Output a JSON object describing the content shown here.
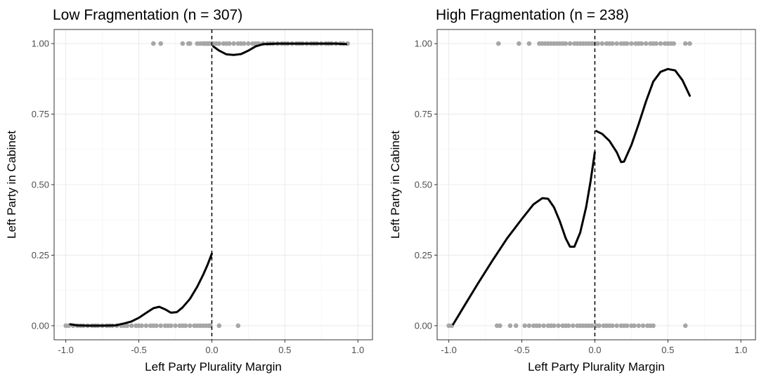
{
  "chart_data": [
    {
      "type": "scatter",
      "title": "Low Fragmentation (n = 307)",
      "xlabel": "Left Party Plurality Margin",
      "ylabel": "Left Party in Cabinet",
      "xlim": [
        -1.08,
        1.1
      ],
      "ylim": [
        -0.05,
        1.05
      ],
      "xticks": [
        -1.0,
        -0.5,
        0.0,
        0.5,
        1.0
      ],
      "xtick_labels": [
        "-1.0",
        "-0.5",
        "0.0",
        "0.5",
        "1.0"
      ],
      "yticks": [
        0,
        0.25,
        0.5,
        0.75,
        1.0
      ],
      "ytick_labels": [
        "0.00",
        "0.25",
        "0.50",
        "0.75",
        "1.00"
      ],
      "grid": true,
      "cutoff": 0,
      "point_color": "#a6a6a6",
      "line_color": "#000000",
      "points_y1": [
        -0.4,
        -0.35,
        -0.2,
        -0.16,
        -0.15,
        -0.1,
        -0.08,
        -0.06,
        -0.05,
        -0.04,
        -0.03,
        -0.02,
        -0.01,
        0.0,
        0.01,
        0.03,
        0.05,
        0.08,
        0.1,
        0.12,
        0.15,
        0.18,
        0.2,
        0.22,
        0.25,
        0.28,
        0.3,
        0.32,
        0.35,
        0.38,
        0.4,
        0.42,
        0.45,
        0.48,
        0.5,
        0.52,
        0.55,
        0.58,
        0.6,
        0.62,
        0.65,
        0.68,
        0.7,
        0.72,
        0.75,
        0.78,
        0.8,
        0.82,
        0.85,
        0.88,
        0.9,
        0.93
      ],
      "points_y0": [
        -1.0,
        -0.98,
        -0.95,
        -0.92,
        -0.9,
        -0.88,
        -0.85,
        -0.82,
        -0.8,
        -0.78,
        -0.75,
        -0.72,
        -0.7,
        -0.68,
        -0.65,
        -0.62,
        -0.6,
        -0.58,
        -0.55,
        -0.52,
        -0.5,
        -0.48,
        -0.45,
        -0.42,
        -0.4,
        -0.38,
        -0.35,
        -0.32,
        -0.3,
        -0.28,
        -0.25,
        -0.22,
        -0.2,
        -0.18,
        -0.15,
        -0.12,
        -0.1,
        -0.08,
        -0.06,
        -0.04,
        -0.02,
        -0.01,
        0.05,
        0.18
      ],
      "smooth_left": [
        [
          -0.97,
          0.005
        ],
        [
          -0.92,
          0.001
        ],
        [
          -0.85,
          0.0
        ],
        [
          -0.75,
          0.0
        ],
        [
          -0.66,
          0.001
        ],
        [
          -0.6,
          0.008
        ],
        [
          -0.55,
          0.015
        ],
        [
          -0.5,
          0.028
        ],
        [
          -0.45,
          0.045
        ],
        [
          -0.4,
          0.062
        ],
        [
          -0.36,
          0.067
        ],
        [
          -0.32,
          0.058
        ],
        [
          -0.28,
          0.046
        ],
        [
          -0.24,
          0.048
        ],
        [
          -0.2,
          0.065
        ],
        [
          -0.15,
          0.095
        ],
        [
          -0.1,
          0.138
        ],
        [
          -0.06,
          0.18
        ],
        [
          -0.03,
          0.215
        ],
        [
          0.0,
          0.255
        ]
      ],
      "smooth_right": [
        [
          0.01,
          0.99
        ],
        [
          0.05,
          0.975
        ],
        [
          0.1,
          0.962
        ],
        [
          0.15,
          0.96
        ],
        [
          0.2,
          0.963
        ],
        [
          0.25,
          0.975
        ],
        [
          0.3,
          0.99
        ],
        [
          0.35,
          0.998
        ],
        [
          0.45,
          1.0
        ],
        [
          0.6,
          1.0
        ],
        [
          0.75,
          1.0
        ],
        [
          0.85,
          1.0
        ],
        [
          0.92,
          0.998
        ]
      ]
    },
    {
      "type": "scatter",
      "title": "High Fragmentation (n = 238)",
      "xlabel": "Left Party Plurality Margin",
      "ylabel": "Left Party in Cabinet",
      "xlim": [
        -1.08,
        1.1
      ],
      "ylim": [
        -0.05,
        1.05
      ],
      "xticks": [
        -1.0,
        -0.5,
        0.0,
        0.5,
        1.0
      ],
      "xtick_labels": [
        "-1.0",
        "-0.5",
        "0.0",
        "0.5",
        "1.0"
      ],
      "yticks": [
        0,
        0.25,
        0.5,
        0.75,
        1.0
      ],
      "ytick_labels": [
        "0.00",
        "0.25",
        "0.50",
        "0.75",
        "1.00"
      ],
      "grid": true,
      "cutoff": 0,
      "point_color": "#a6a6a6",
      "line_color": "#000000",
      "points_y1": [
        -0.66,
        -0.52,
        -0.45,
        -0.38,
        -0.36,
        -0.34,
        -0.32,
        -0.3,
        -0.28,
        -0.26,
        -0.24,
        -0.22,
        -0.2,
        -0.17,
        -0.14,
        -0.12,
        -0.1,
        -0.08,
        -0.06,
        -0.04,
        -0.02,
        0.0,
        0.02,
        0.05,
        0.08,
        0.1,
        0.12,
        0.15,
        0.18,
        0.2,
        0.22,
        0.25,
        0.28,
        0.3,
        0.32,
        0.35,
        0.38,
        0.4,
        0.42,
        0.45,
        0.48,
        0.5,
        0.52,
        0.54,
        0.62,
        0.65
      ],
      "points_y0": [
        -1.0,
        -0.98,
        -0.67,
        -0.65,
        -0.58,
        -0.54,
        -0.48,
        -0.45,
        -0.42,
        -0.4,
        -0.38,
        -0.35,
        -0.32,
        -0.3,
        -0.28,
        -0.25,
        -0.22,
        -0.2,
        -0.18,
        -0.15,
        -0.12,
        -0.1,
        -0.08,
        -0.06,
        -0.04,
        -0.02,
        0.01,
        0.03,
        0.06,
        0.08,
        0.1,
        0.12,
        0.15,
        0.18,
        0.2,
        0.22,
        0.25,
        0.27,
        0.3,
        0.33,
        0.36,
        0.38,
        0.4,
        0.62
      ],
      "smooth_left": [
        [
          -0.97,
          0.005
        ],
        [
          -0.9,
          0.065
        ],
        [
          -0.8,
          0.15
        ],
        [
          -0.7,
          0.232
        ],
        [
          -0.6,
          0.31
        ],
        [
          -0.5,
          0.378
        ],
        [
          -0.42,
          0.43
        ],
        [
          -0.36,
          0.452
        ],
        [
          -0.32,
          0.45
        ],
        [
          -0.28,
          0.42
        ],
        [
          -0.24,
          0.37
        ],
        [
          -0.2,
          0.31
        ],
        [
          -0.17,
          0.28
        ],
        [
          -0.14,
          0.28
        ],
        [
          -0.1,
          0.33
        ],
        [
          -0.06,
          0.42
        ],
        [
          -0.03,
          0.51
        ],
        [
          0.0,
          0.615
        ]
      ],
      "smooth_right": [
        [
          0.01,
          0.69
        ],
        [
          0.05,
          0.68
        ],
        [
          0.1,
          0.655
        ],
        [
          0.15,
          0.615
        ],
        [
          0.18,
          0.58
        ],
        [
          0.2,
          0.582
        ],
        [
          0.25,
          0.64
        ],
        [
          0.3,
          0.715
        ],
        [
          0.35,
          0.795
        ],
        [
          0.4,
          0.865
        ],
        [
          0.45,
          0.9
        ],
        [
          0.5,
          0.91
        ],
        [
          0.55,
          0.905
        ],
        [
          0.6,
          0.87
        ],
        [
          0.65,
          0.815
        ]
      ]
    }
  ]
}
